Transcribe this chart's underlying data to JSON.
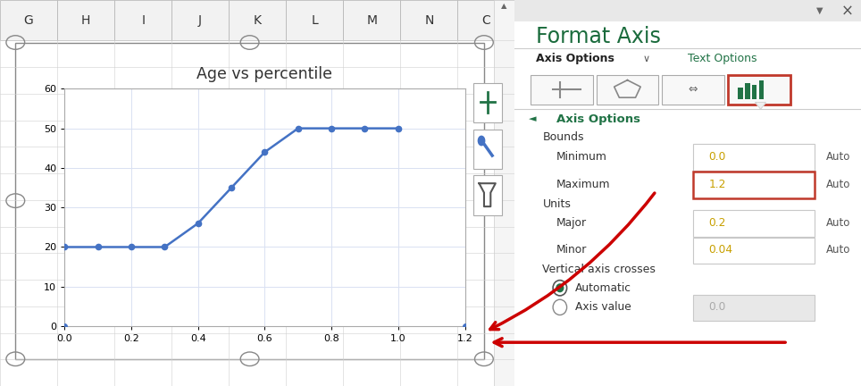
{
  "x_data": [
    0.0,
    0.1,
    0.2,
    0.3,
    0.4,
    0.5,
    0.6,
    0.7,
    0.8,
    0.9,
    1.0
  ],
  "y_data": [
    20,
    20,
    20,
    20,
    26,
    35,
    44,
    50,
    50,
    50,
    50
  ],
  "title": "Age vs percentile",
  "x_min": 0.0,
  "x_max": 1.2,
  "y_min": 0,
  "y_max": 60,
  "x_ticks": [
    0.0,
    0.2,
    0.4,
    0.6,
    0.8,
    1.0,
    1.2
  ],
  "y_ticks": [
    0,
    10,
    20,
    30,
    40,
    50,
    60
  ],
  "line_color": "#4472C4",
  "grid_color": "#D9E1F2",
  "panel_bg": "#efefef",
  "col_headers": [
    "G",
    "H",
    "I",
    "J",
    "K",
    "L",
    "M",
    "N",
    "C"
  ],
  "format_axis_title": "Format Axis",
  "axis_options_label": "Axis Options",
  "text_options_label": "Text Options",
  "bounds_label": "Bounds",
  "minimum_label": "Minimum",
  "maximum_label": "Maximum",
  "units_label": "Units",
  "major_label": "Major",
  "minor_label": "Minor",
  "vertical_crosses_label": "Vertical axis crosses",
  "automatic_label": "Automatic",
  "axis_value_label": "Axis value",
  "min_value": "0.0",
  "max_value": "1.2",
  "major_value": "0.2",
  "minor_value": "0.04",
  "auto_label": "Auto",
  "axis_val_field": "0.0",
  "header_green": "#217346",
  "red_arrow": "#cc0000"
}
